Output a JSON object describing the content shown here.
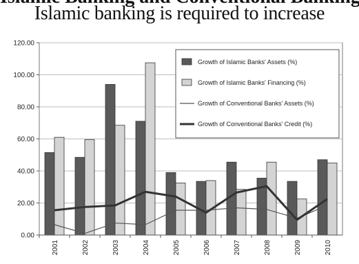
{
  "heading": {
    "cut_line": "Islamic Banking and Conventional Banking",
    "main_line": "Islamic banking is required to increase"
  },
  "chart_data": {
    "type": "bar",
    "categories": [
      "2001",
      "2002",
      "2003",
      "2004",
      "2005",
      "2006",
      "2007",
      "2008",
      "2009",
      "2010"
    ],
    "ylim": [
      0,
      120
    ],
    "yticks": [
      "0.00",
      "20.00",
      "40.00",
      "60.00",
      "80.00",
      "100.00",
      "120.00"
    ],
    "grid": true,
    "legend_position": "top-right",
    "series": [
      {
        "name": "Growth of Islamic Banks' Assets (%)",
        "kind": "bar",
        "color": "#5a5a5a",
        "values": [
          51.5,
          48.5,
          94.0,
          71.0,
          39.0,
          33.5,
          45.5,
          35.5,
          33.5,
          47.0
        ]
      },
      {
        "name": "Growth of Islamic Banks' Financing (%)",
        "kind": "bar",
        "color": "#d4d4d4",
        "values": [
          61.0,
          59.5,
          68.5,
          107.5,
          32.5,
          34.0,
          28.5,
          45.5,
          22.5,
          45.0
        ]
      },
      {
        "name": "Growth of Conventional Banks' Assets (%)",
        "kind": "line",
        "color": "#555555",
        "width": 1.2,
        "values": [
          6.5,
          1.0,
          7.5,
          6.5,
          15.5,
          15.5,
          17.0,
          16.0,
          10.5,
          18.5
        ]
      },
      {
        "name": "Growth of Conventional Banks' Credit (%)",
        "kind": "line",
        "color": "#333333",
        "width": 3,
        "values": [
          15.5,
          17.5,
          18.5,
          27.0,
          24.0,
          14.0,
          26.5,
          30.5,
          9.5,
          22.5
        ]
      }
    ]
  }
}
